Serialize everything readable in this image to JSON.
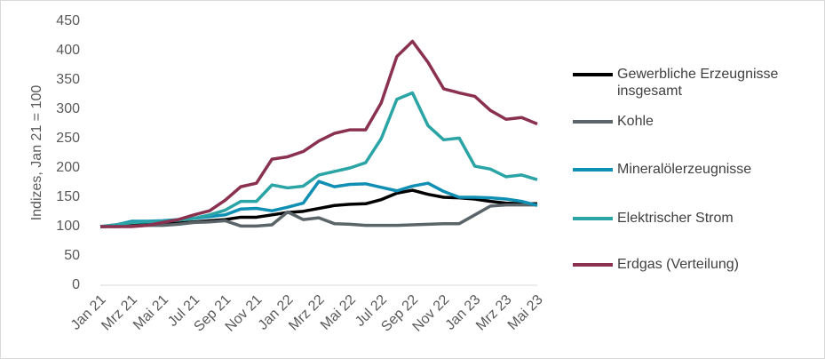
{
  "chart_data": {
    "type": "line",
    "y_label": "Indizes, Jan 21 = 100",
    "categories": [
      "Jan 21",
      null,
      "Mrz 21",
      null,
      "Mai 21",
      null,
      "Jul 21",
      null,
      "Sep 21",
      null,
      "Nov 21",
      null,
      "Jan 22",
      null,
      "Mrz 22",
      null,
      "Mai 22",
      null,
      "Jul 22",
      null,
      "Sep 22",
      null,
      "Nov 22",
      null,
      "Jan 23",
      null,
      "Mrz 23",
      null,
      "Mai 23"
    ],
    "ylim": [
      0,
      450
    ],
    "yticks": [
      0,
      50,
      100,
      150,
      200,
      250,
      300,
      350,
      400,
      450
    ],
    "grid": false,
    "legend": "right",
    "series": [
      {
        "name": "Gewerbliche Erzeugnisse insgesamt",
        "color": "#000000",
        "values": [
          100,
          101,
          103,
          104,
          105,
          106,
          108,
          110,
          112,
          116,
          116,
          120,
          124,
          126,
          131,
          136,
          138,
          139,
          146,
          157,
          162,
          155,
          150,
          149,
          147,
          143,
          140,
          139,
          139
        ]
      },
      {
        "name": "Kohle",
        "color": "#5b6569",
        "values": [
          100,
          100,
          101,
          102,
          102,
          104,
          107,
          108,
          110,
          101,
          101,
          103,
          125,
          112,
          115,
          105,
          104,
          102,
          102,
          102,
          103,
          104,
          105,
          105,
          120,
          135,
          137,
          137,
          137
        ]
      },
      {
        "name": "Mineralölerzeugnisse",
        "color": "#108fb5",
        "values": [
          100,
          103,
          109,
          109,
          110,
          112,
          114,
          117,
          120,
          130,
          131,
          127,
          133,
          140,
          177,
          168,
          172,
          173,
          167,
          161,
          169,
          174,
          160,
          150,
          150,
          149,
          147,
          143,
          136
        ]
      },
      {
        "name": "Elektrischer Strom",
        "color": "#2ba4a6",
        "values": [
          100,
          103,
          107,
          108,
          109,
          111,
          114,
          120,
          128,
          143,
          143,
          171,
          166,
          169,
          188,
          194,
          200,
          209,
          250,
          317,
          328,
          272,
          248,
          251,
          203,
          198,
          185,
          188,
          180
        ]
      },
      {
        "name": "Erdgas (Verteilung)",
        "color": "#8b3150",
        "values": [
          100,
          100,
          100,
          102,
          107,
          112,
          120,
          127,
          145,
          168,
          174,
          215,
          219,
          228,
          246,
          259,
          265,
          265,
          311,
          390,
          416,
          380,
          335,
          328,
          322,
          298,
          283,
          286,
          275
        ]
      }
    ]
  }
}
